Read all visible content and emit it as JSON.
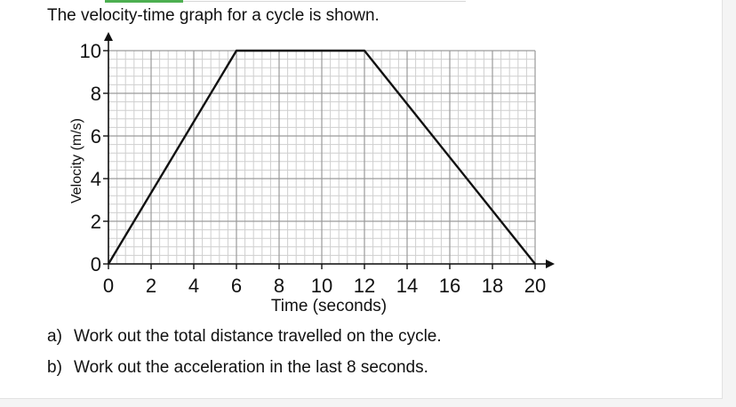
{
  "question": {
    "intro": "The velocity-time graph for a cycle is shown.",
    "parts": [
      {
        "label": "a)",
        "text": "Work out the total distance travelled on the cycle."
      },
      {
        "label": "b)",
        "text": "Work out the acceleration in the last 8 seconds."
      }
    ]
  },
  "chart_data": {
    "type": "line",
    "title": "",
    "xlabel": "Time (seconds)",
    "ylabel": "Velocity (m/s)",
    "xlim": [
      0,
      20
    ],
    "ylim": [
      0,
      10
    ],
    "x_ticks": [
      0,
      2,
      4,
      6,
      8,
      10,
      12,
      14,
      16,
      18,
      20
    ],
    "y_ticks": [
      0,
      2,
      4,
      6,
      8,
      10
    ],
    "minor_x_step": 0.4,
    "minor_y_step": 0.4,
    "grid": true,
    "legend": "none",
    "series": [
      {
        "x": [
          0,
          6,
          12,
          20
        ],
        "y": [
          0,
          10,
          10,
          0
        ]
      }
    ],
    "colors": {
      "line": "#111111",
      "grid_major": "#9a9a9a",
      "grid_minor": "#cfcfcf",
      "axis": "#111111"
    }
  }
}
